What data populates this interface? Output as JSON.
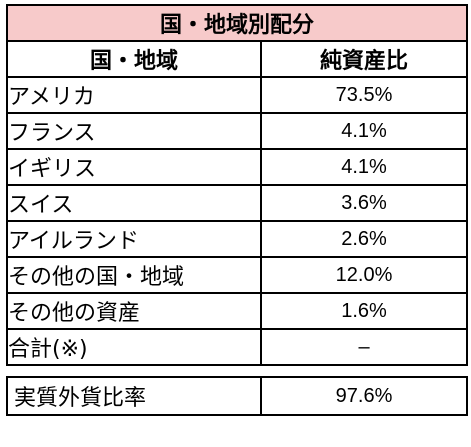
{
  "table": {
    "title": "国・地域別配分",
    "headers": [
      "国・地域",
      "純資産比"
    ],
    "rows": [
      {
        "name": "アメリカ",
        "value": "73.5%"
      },
      {
        "name": "フランス",
        "value": "4.1%"
      },
      {
        "name": "イギリス",
        "value": "4.1%"
      },
      {
        "name": "スイス",
        "value": "3.6%"
      },
      {
        "name": "アイルランド",
        "value": "2.6%"
      },
      {
        "name": "その他の国・地域",
        "value": "12.0%"
      },
      {
        "name": "その他の資産",
        "value": "1.6%"
      },
      {
        "name": "合計(※)",
        "value": "–"
      }
    ]
  },
  "summary": {
    "name": "実質外貨比率",
    "value": "97.6%"
  },
  "colors": {
    "title_background": "#f7caca"
  }
}
